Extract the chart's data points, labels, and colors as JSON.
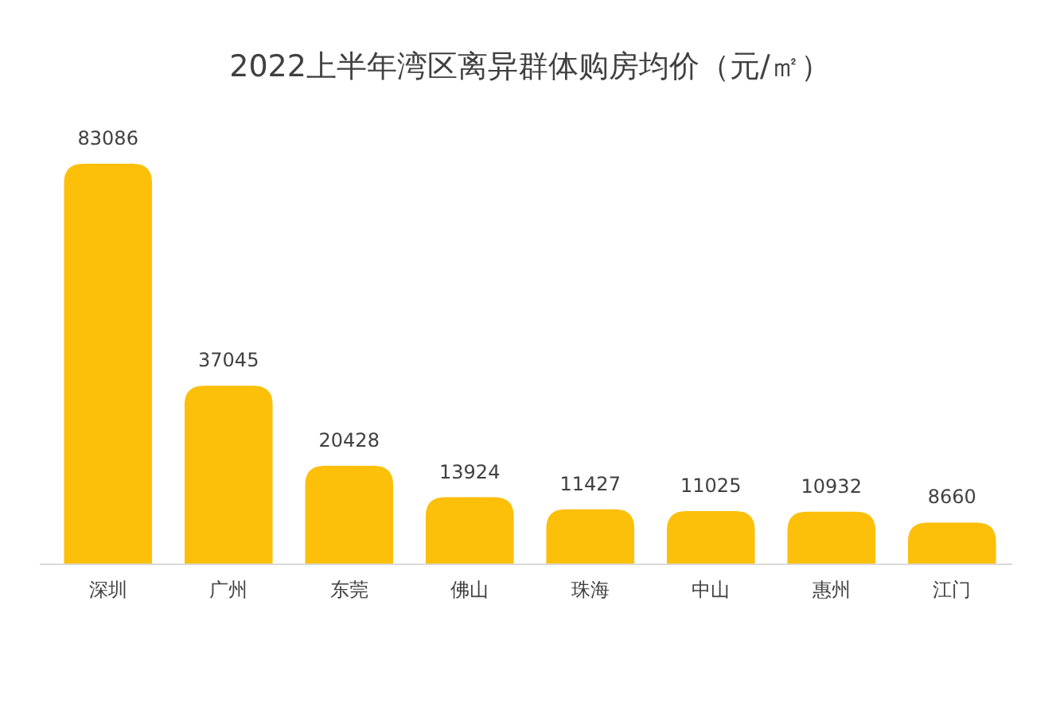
{
  "chart_data": {
    "type": "bar",
    "title": "2022上半年湾区离异群体购房均价（元/㎡）",
    "categories": [
      "深圳",
      "广州",
      "东莞",
      "佛山",
      "珠海",
      "中山",
      "惠州",
      "江门"
    ],
    "values": [
      83086,
      37045,
      20428,
      13924,
      11427,
      11025,
      10932,
      8660
    ],
    "color": "#fcbf0a",
    "data_labels": true
  }
}
